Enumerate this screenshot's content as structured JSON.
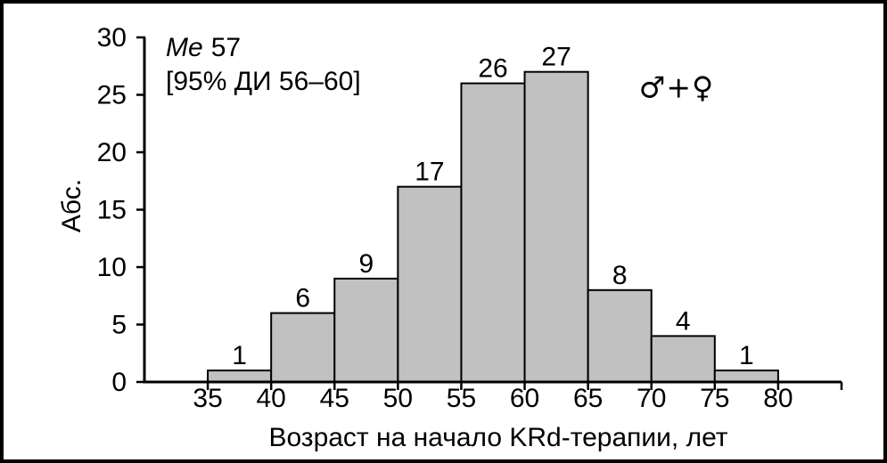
{
  "frame": {
    "background": "#ffffff",
    "border_color": "#000000"
  },
  "annotation": {
    "median_prefix": "Me",
    "median_value": "57",
    "ci_line": "[95% ДИ 56–60]"
  },
  "legend": {
    "sex_symbols": "♂+♀"
  },
  "chart_data": {
    "type": "bar",
    "subtype": "histogram",
    "xlabel": "Возраст на начало KRd-терапии, лет",
    "ylabel": "Абс.",
    "bin_edges": [
      35,
      40,
      45,
      50,
      55,
      60,
      65,
      70,
      75,
      80
    ],
    "categories": [
      "35–40",
      "40–45",
      "45–50",
      "50–55",
      "55–60",
      "60–65",
      "65–70",
      "70–75",
      "75–80"
    ],
    "values": [
      1,
      6,
      9,
      17,
      26,
      27,
      8,
      4,
      1
    ],
    "bar_labels": [
      "1",
      "6",
      "9",
      "17",
      "26",
      "27",
      "8",
      "4",
      "1"
    ],
    "x_ticks": [
      35,
      40,
      45,
      50,
      55,
      60,
      65,
      70,
      75,
      80
    ],
    "y_ticks": [
      0,
      5,
      10,
      15,
      20,
      25,
      30
    ],
    "xlim": [
      30,
      85
    ],
    "ylim": [
      0,
      30
    ],
    "grid": false,
    "legend_position": "top-right",
    "colors": {
      "bar_fill": "#c1c1c1",
      "bar_stroke": "#000000",
      "axis": "#000000",
      "text": "#000000"
    }
  }
}
